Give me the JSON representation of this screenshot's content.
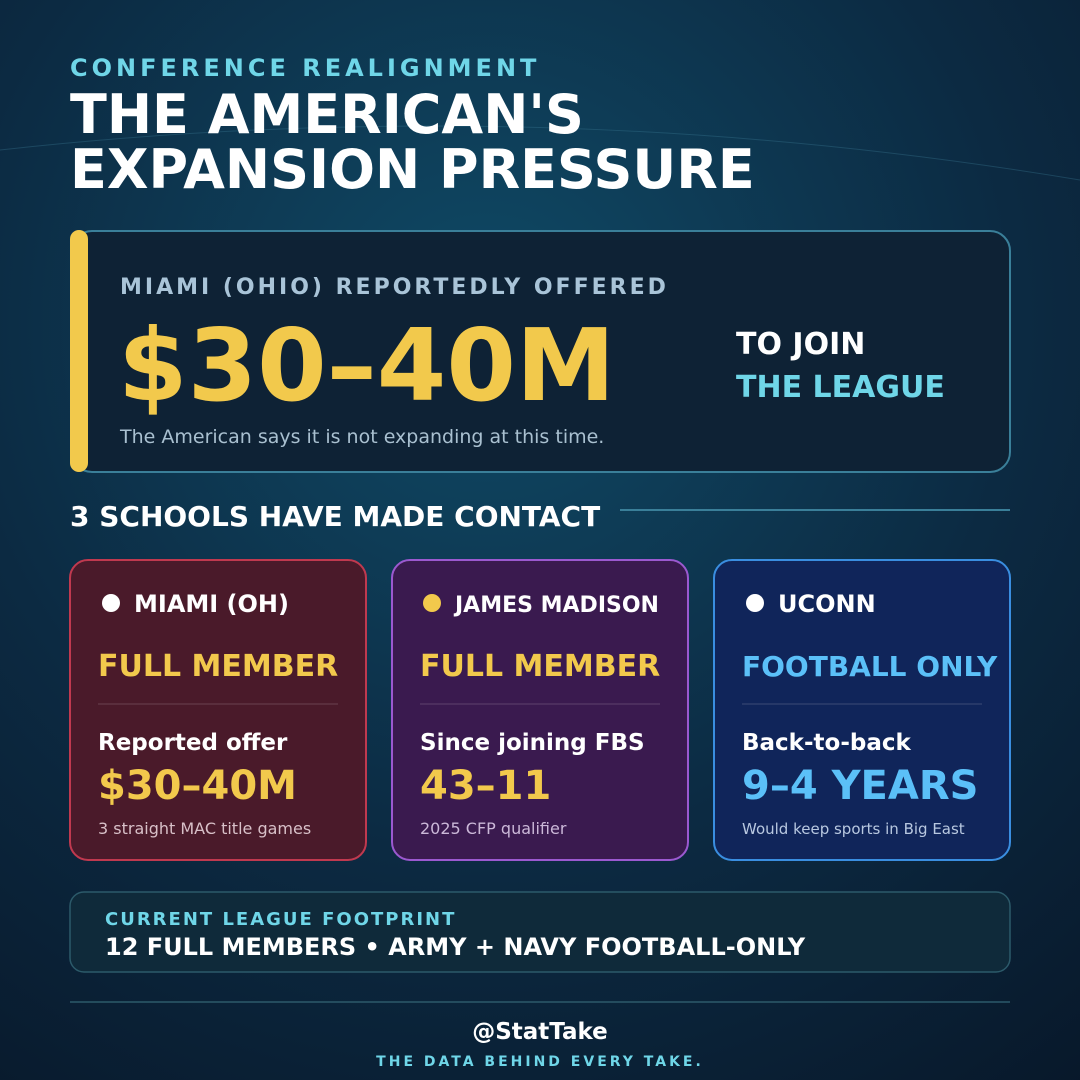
{
  "header": {
    "kicker": "CONFERENCE REALIGNMENT",
    "title_lines": [
      "THE AMERICAN'S",
      "EXPANSION PRESSURE"
    ]
  },
  "offer": {
    "label": "MIAMI (OHIO) REPORTEDLY OFFERED",
    "amount": "$30–40M",
    "note": "The American says it is not expanding at this time.",
    "side": [
      "TO JOIN",
      "THE LEAGUE"
    ]
  },
  "contacts": {
    "heading": "3 SCHOOLS HAVE MADE CONTACT",
    "schools": [
      {
        "name": "MIAMI (OH)",
        "status": "FULL MEMBER",
        "stat_label": "Reported offer",
        "stat": "$30–40M",
        "note": "3 straight MAC title games"
      },
      {
        "name": "JAMES MADISON",
        "status": "FULL MEMBER",
        "stat_label": "Since joining FBS",
        "stat": "43–11",
        "note": "2025 CFP qualifier"
      },
      {
        "name": "UCONN",
        "status": "FOOTBALL ONLY",
        "stat_label": "Back-to-back",
        "stat": "9–4 YEARS",
        "note": "Would keep sports in Big East"
      }
    ]
  },
  "footprint": {
    "label": "CURRENT LEAGUE FOOTPRINT",
    "text": "12 FULL MEMBERS • ARMY + NAVY FOOTBALL-ONLY"
  },
  "footer": {
    "handle": "@StatTake",
    "tagline": "THE DATA BEHIND EVERY TAKE."
  }
}
